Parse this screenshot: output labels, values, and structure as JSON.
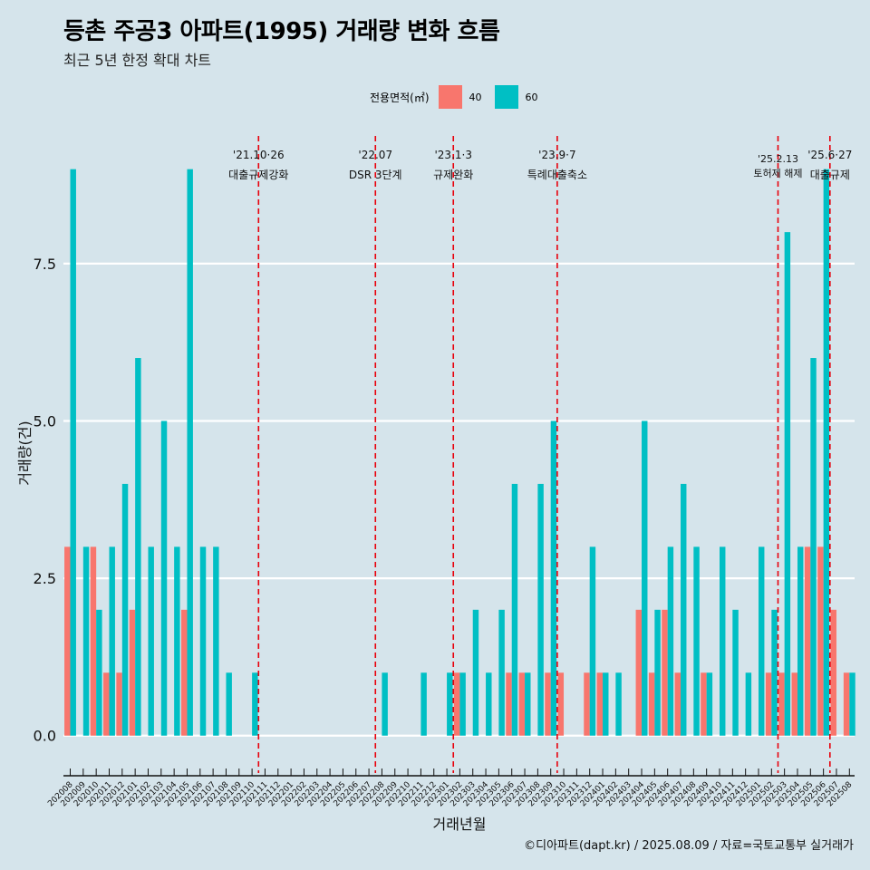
{
  "title": "등촌 주공3 아파트(1995) 거래량 변화 흐름",
  "subtitle": "최근 5년 한정 확대 차트",
  "caption": "©디아파트(dapt.kr) / 2025.08.09 / 자료=국토교통부 실거래가",
  "legend": {
    "title": "전용면적(㎡)",
    "items": [
      {
        "label": "40",
        "color": "#f8766d"
      },
      {
        "label": "60",
        "color": "#00bfc4"
      }
    ]
  },
  "chart_data": {
    "type": "bar",
    "bar_mode": "dodge",
    "xlabel": "거래년월",
    "ylabel": "거래량(건)",
    "ylim": [
      -0.45,
      9.6
    ],
    "yticks": [
      0.0,
      2.5,
      5.0,
      7.5
    ],
    "ytick_labels": [
      "0.0",
      "2.5",
      "5.0",
      "7.5"
    ],
    "grid": "horizontal",
    "categories": [
      "202008",
      "202009",
      "202010",
      "202011",
      "202012",
      "202101",
      "202102",
      "202103",
      "202104",
      "202105",
      "202106",
      "202107",
      "202108",
      "202109",
      "202110",
      "202111",
      "202112",
      "202201",
      "202202",
      "202203",
      "202204",
      "202205",
      "202206",
      "202207",
      "202208",
      "202209",
      "202210",
      "202211",
      "202212",
      "202301",
      "202302",
      "202303",
      "202304",
      "202305",
      "202306",
      "202307",
      "202308",
      "202309",
      "202310",
      "202311",
      "202312",
      "202401",
      "202402",
      "202403",
      "202404",
      "202405",
      "202406",
      "202407",
      "202408",
      "202409",
      "202410",
      "202411",
      "202412",
      "202501",
      "202502",
      "202503",
      "202504",
      "202505",
      "202506",
      "202507",
      "202508"
    ],
    "series": [
      {
        "name": "40",
        "color": "#f8766d",
        "values": [
          3,
          0,
          3,
          1,
          1,
          2,
          0,
          0,
          0,
          2,
          0,
          0,
          0,
          0,
          0,
          0,
          0,
          0,
          0,
          0,
          0,
          0,
          0,
          0,
          0,
          0,
          0,
          0,
          0,
          0,
          1,
          0,
          0,
          0,
          1,
          1,
          0,
          1,
          1,
          0,
          1,
          1,
          0,
          0,
          2,
          1,
          2,
          1,
          0,
          1,
          0,
          0,
          0,
          0,
          1,
          1,
          1,
          3,
          3,
          2,
          1
        ]
      },
      {
        "name": "60",
        "color": "#00bfc4",
        "values": [
          9,
          3,
          2,
          3,
          4,
          6,
          3,
          5,
          3,
          9,
          3,
          3,
          1,
          0,
          1,
          0,
          0,
          0,
          0,
          0,
          0,
          0,
          0,
          0,
          1,
          0,
          0,
          1,
          0,
          1,
          1,
          2,
          1,
          2,
          4,
          1,
          4,
          5,
          0,
          0,
          3,
          1,
          1,
          0,
          5,
          2,
          3,
          4,
          3,
          1,
          3,
          2,
          1,
          3,
          2,
          8,
          3,
          6,
          9,
          0,
          1
        ]
      }
    ],
    "events": [
      {
        "index": 14.5,
        "date": "'21.10·26",
        "label": "대출규제강화",
        "row": 0
      },
      {
        "index": 23.5,
        "date": "'22.07",
        "label": "DSR 3단계",
        "row": 0
      },
      {
        "index": 29.5,
        "date": "'23.1·3",
        "label": "규제완화",
        "row": 0
      },
      {
        "index": 37.5,
        "date": "'23.9·7",
        "label": "특례대출축소",
        "row": 0
      },
      {
        "index": 54.5,
        "date": "'25.2.13",
        "label": "토허제 해제",
        "row": 1
      },
      {
        "index": 58.5,
        "date": "'25.6·27",
        "label": "대출규제",
        "row": 0
      }
    ]
  }
}
